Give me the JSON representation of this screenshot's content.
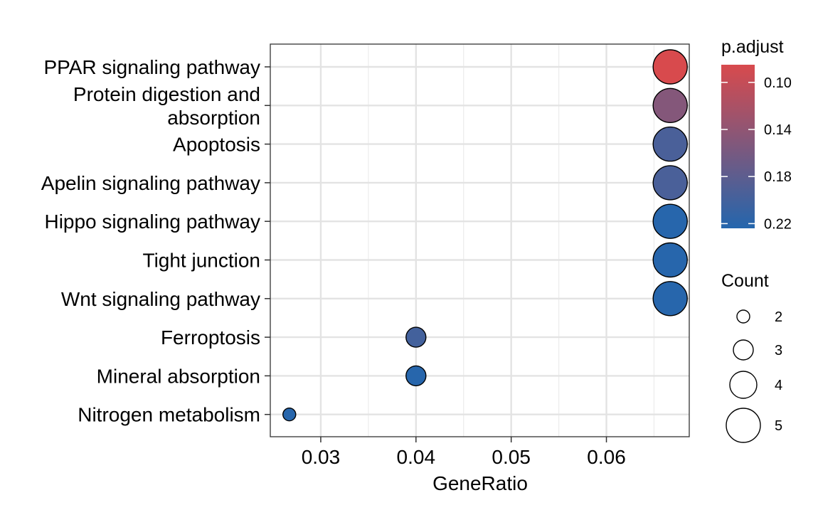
{
  "chart_data": {
    "type": "scatter",
    "xlabel": "GeneRatio",
    "ylabel": "",
    "xlim": [
      0.0247,
      0.0687
    ],
    "xticks": [
      0.03,
      0.04,
      0.05,
      0.06
    ],
    "xtick_labels": [
      "0.03",
      "0.04",
      "0.05",
      "0.06"
    ],
    "grid": true,
    "categories": [
      [
        "PPAR signaling pathway"
      ],
      [
        "Protein digestion and",
        "absorption"
      ],
      [
        "Apoptosis"
      ],
      [
        "Apelin signaling pathway"
      ],
      [
        "Hippo signaling pathway"
      ],
      [
        "Tight junction"
      ],
      [
        "Wnt signaling pathway"
      ],
      [
        "Ferroptosis"
      ],
      [
        "Mineral absorption"
      ],
      [
        "Nitrogen metabolism"
      ]
    ],
    "points": [
      {
        "gene_ratio": 0.0667,
        "count": 5,
        "p_adjust": 0.085
      },
      {
        "gene_ratio": 0.0667,
        "count": 5,
        "p_adjust": 0.15
      },
      {
        "gene_ratio": 0.0667,
        "count": 5,
        "p_adjust": 0.195
      },
      {
        "gene_ratio": 0.0667,
        "count": 5,
        "p_adjust": 0.195
      },
      {
        "gene_ratio": 0.0667,
        "count": 5,
        "p_adjust": 0.222
      },
      {
        "gene_ratio": 0.0667,
        "count": 5,
        "p_adjust": 0.222
      },
      {
        "gene_ratio": 0.0667,
        "count": 5,
        "p_adjust": 0.222
      },
      {
        "gene_ratio": 0.04,
        "count": 3,
        "p_adjust": 0.2
      },
      {
        "gene_ratio": 0.04,
        "count": 3,
        "p_adjust": 0.222
      },
      {
        "gene_ratio": 0.0267,
        "count": 2,
        "p_adjust": 0.222
      }
    ],
    "color_legend": {
      "title": "p.adjust",
      "domain": [
        0.085,
        0.224
      ],
      "ticks": [
        0.1,
        0.14,
        0.18,
        0.22
      ],
      "tick_labels": [
        "0.10",
        "0.14",
        "0.18",
        "0.22"
      ],
      "color_low_value": "#d84a4d",
      "color_high_value": "#2466ad"
    },
    "size_legend": {
      "title": "Count",
      "values": [
        2,
        3,
        4,
        5
      ],
      "labels": [
        "2",
        "3",
        "4",
        "5"
      ]
    },
    "legend_position": "right"
  }
}
